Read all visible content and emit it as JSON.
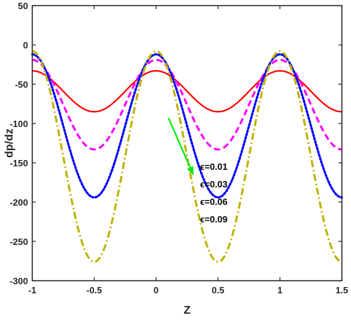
{
  "chart_data": {
    "type": "line",
    "xlabel": "Z",
    "ylabel": "dp/dz",
    "xlim": [
      -1,
      1.5
    ],
    "ylim": [
      -300,
      50
    ],
    "xticks": [
      "-1",
      "-0.5",
      "0",
      "0.5",
      "1",
      "1.5"
    ],
    "xtick_values": [
      -1,
      -0.5,
      0,
      0.5,
      1,
      1.5
    ],
    "yticks": [
      "50",
      "0",
      "-50",
      "-100",
      "-150",
      "-200",
      "-250",
      "-300"
    ],
    "ytick_values": [
      50,
      0,
      -50,
      -100,
      -150,
      -200,
      -250,
      -300
    ],
    "grid": false,
    "annotation": {
      "labels": [
        "ϵ=0.01",
        "ϵ=0.03",
        "ϵ=0.06",
        "ϵ=0.09"
      ],
      "arrow_color": "#00ee00",
      "arrow_from": [
        0.1,
        -93
      ],
      "arrow_to": [
        0.3,
        -165
      ]
    },
    "series": [
      {
        "color": "#ff0000",
        "style": "solid",
        "max": -33,
        "min": -85
      },
      {
        "color": "#ff00ff",
        "style": "dashed",
        "max": -19,
        "min": -133
      },
      {
        "color": "#0000ff",
        "style": "dotted",
        "max": -12,
        "min": -194
      },
      {
        "color": "#bdb200",
        "style": "dashdot",
        "max": -8,
        "min": -276
      }
    ]
  }
}
